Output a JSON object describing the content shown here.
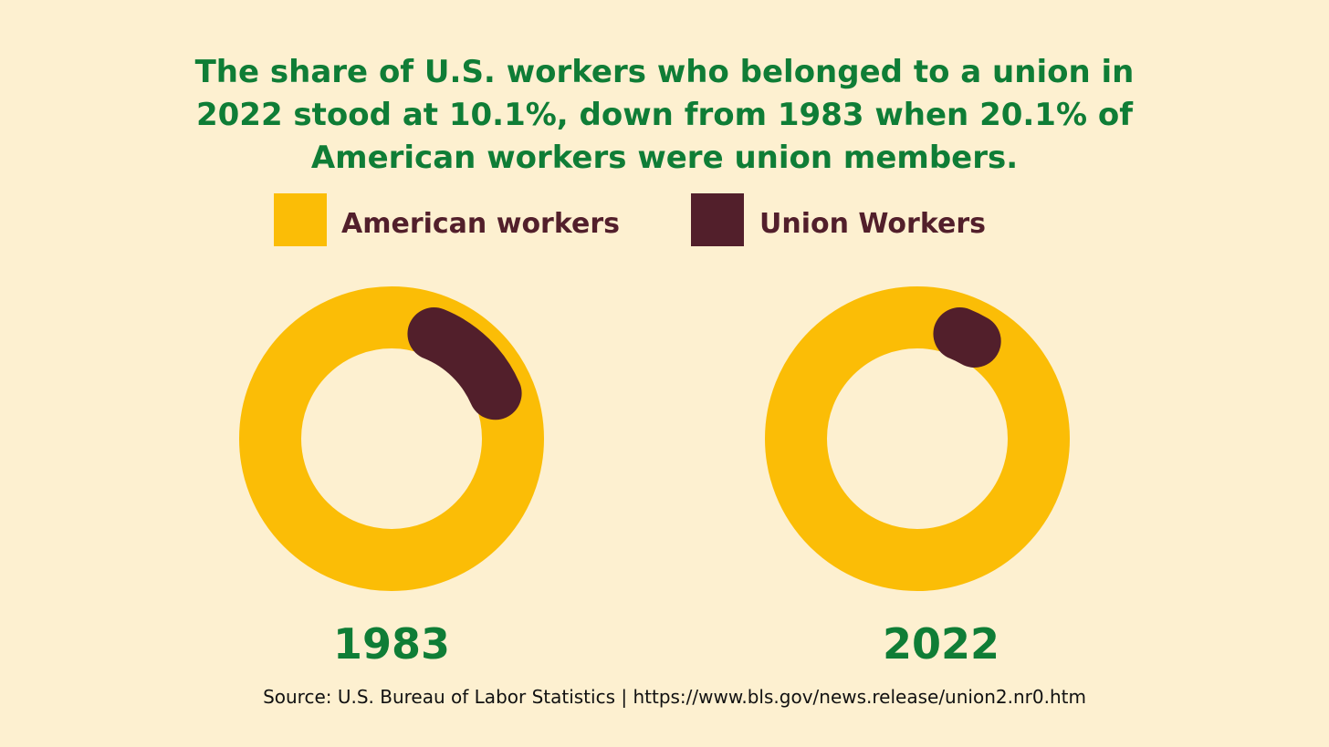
{
  "title": "The share of U.S. workers who belonged to a union in 2022 stood at 10.1%, down from 1983 when 20.1% of American workers were union members.",
  "source": "Source: U.S. Bureau of Labor Statistics | https://www.bls.gov/news.release/union2.nr0.htm",
  "colors": {
    "background": "#fdf0d0",
    "title": "#0f7d36",
    "american_workers": "#fbbd06",
    "union_workers": "#521f2b",
    "year_label": "#0f7d36"
  },
  "chart_data": [
    {
      "type": "pie",
      "style": "donut",
      "title": "1983",
      "categories": [
        "American workers",
        "Union Workers"
      ],
      "legend": [
        "American workers",
        "Union Workers"
      ],
      "legend_position": "top",
      "union_share_percent": 20.1
    },
    {
      "type": "pie",
      "style": "donut",
      "title": "2022",
      "categories": [
        "American workers",
        "Union Workers"
      ],
      "legend": [
        "American workers",
        "Union Workers"
      ],
      "legend_position": "top",
      "union_share_percent": 10.1
    }
  ]
}
